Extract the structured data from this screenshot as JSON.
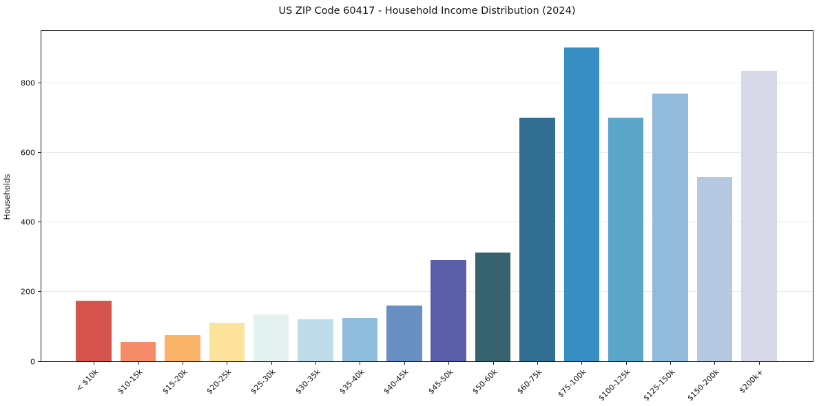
{
  "title": "US ZIP Code 60417 - Household Income Distribution (2024)",
  "chart_data": {
    "type": "bar",
    "title": "US ZIP Code 60417 - Household Income Distribution (2024)",
    "xlabel": "",
    "ylabel": "Households",
    "categories": [
      "< $10k",
      "$10-15k",
      "$15-20k",
      "$20-25k",
      "$25-30k",
      "$30-35k",
      "$35-40k",
      "$40-45k",
      "$45-50k",
      "$50-60k",
      "$60-75k",
      "$75-100k",
      "$100-125k",
      "$125-150k",
      "$150-200k",
      "$200k+"
    ],
    "values": [
      175,
      55,
      75,
      110,
      135,
      120,
      125,
      160,
      290,
      313,
      700,
      903,
      701,
      770,
      530,
      835
    ],
    "bar_colors": [
      "#d6544e",
      "#f68b67",
      "#fab46a",
      "#fce29a",
      "#e3f2ef",
      "#bedce9",
      "#8fbcdc",
      "#6a8fc3",
      "#5a5ea9",
      "#36636f",
      "#336f93",
      "#388fc3",
      "#5aa5c8",
      "#91badb",
      "#b7c9e2",
      "#d7d9e9"
    ],
    "ylim": [
      0,
      950
    ],
    "yticks": [
      0,
      200,
      400,
      600,
      800
    ],
    "grid": "horizontal",
    "gridline_color": "#e9e9e9",
    "axis_color": "#151515",
    "legend": "none",
    "x_tick_rotation_deg": 45
  }
}
